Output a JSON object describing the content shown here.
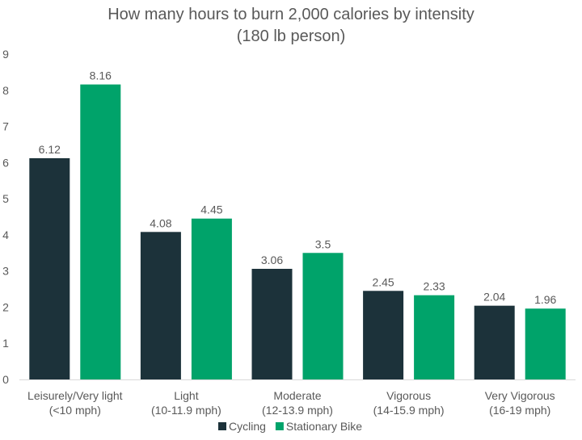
{
  "chart_data": {
    "type": "bar",
    "title": "How many hours to burn 2,000 calories by intensity",
    "subtitle": "(180 lb person)",
    "xlabel": "",
    "ylabel": "",
    "ylim": [
      0,
      9
    ],
    "yticks": [
      "0",
      "1",
      "2",
      "3",
      "4",
      "5",
      "6",
      "7",
      "8",
      "9"
    ],
    "grid": false,
    "legend_position": "bottom",
    "categories": [
      [
        "Leisurely/Very light",
        "(<10 mph)"
      ],
      [
        "Light",
        "(10-11.9 mph)"
      ],
      [
        "Moderate",
        "(12-13.9 mph)"
      ],
      [
        "Vigorous",
        "(14-15.9 mph)"
      ],
      [
        "Very Vigorous",
        "(16-19 mph)"
      ]
    ],
    "series": [
      {
        "name": "Cycling",
        "color": "#1c323a",
        "values": [
          6.12,
          4.08,
          3.06,
          2.45,
          2.04
        ],
        "labels": [
          "6.12",
          "4.08",
          "3.06",
          "2.45",
          "2.04"
        ]
      },
      {
        "name": "Stationary Bike",
        "color": "#00a36a",
        "values": [
          8.16,
          4.45,
          3.5,
          2.33,
          1.96
        ],
        "labels": [
          "8.16",
          "4.45",
          "3.5",
          "2.33",
          "1.96"
        ]
      }
    ]
  }
}
